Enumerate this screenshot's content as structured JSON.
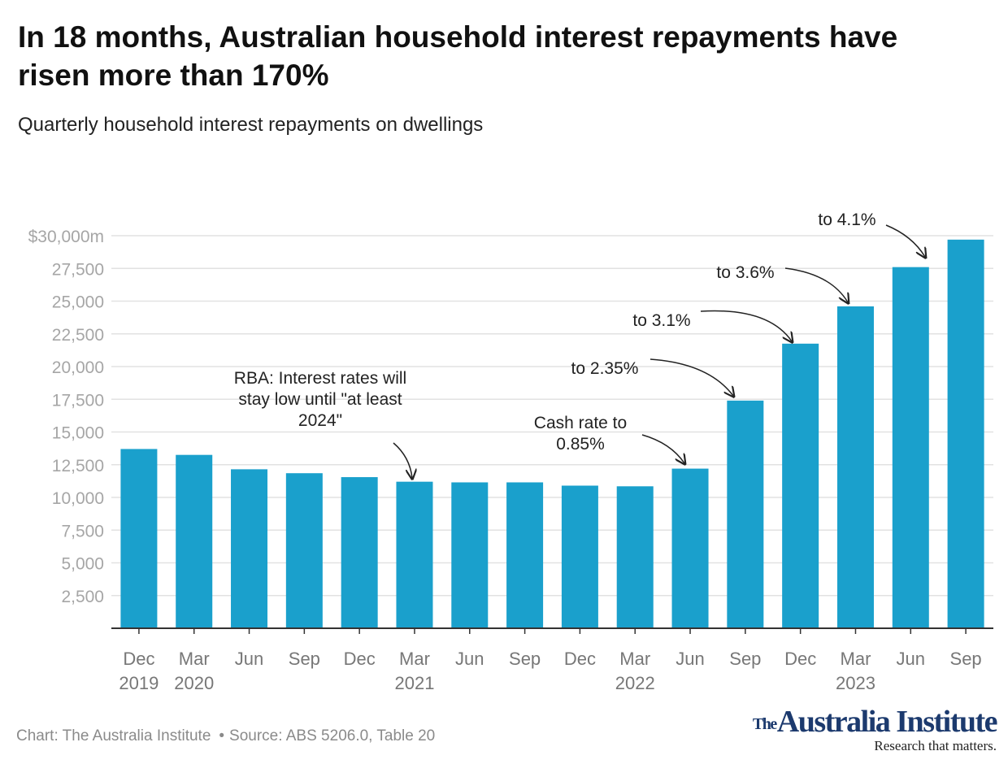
{
  "title": "In 18 months, Australian household interest repayments have risen more than 170%",
  "subtitle": "Quarterly household interest repayments on dwellings",
  "footer": {
    "chart_credit": "Chart: The Australia Institute",
    "source": "Source: ABS 5206.0, Table 20"
  },
  "logo": {
    "the": "The",
    "name": "Australia Institute",
    "tagline": "Research that matters."
  },
  "colors": {
    "bar": "#1aa0cc",
    "grid": "#e2e2e2",
    "axis": "#333333",
    "tick_text": "#a6a6a6",
    "x_text": "#777777",
    "annotation_text": "#222222",
    "logo": "#1c3a6e"
  },
  "chart_data": {
    "type": "bar",
    "categories": [
      "Dec 2019",
      "Mar 2020",
      "Jun",
      "Sep",
      "Dec",
      "Mar 2021",
      "Jun",
      "Sep",
      "Dec",
      "Mar 2022",
      "Jun",
      "Sep",
      "Dec",
      "Mar 2023",
      "Jun",
      "Sep"
    ],
    "x_labels": [
      [
        "Dec",
        "2019"
      ],
      [
        "Mar",
        "2020"
      ],
      [
        "Jun",
        ""
      ],
      [
        "Sep",
        ""
      ],
      [
        "Dec",
        ""
      ],
      [
        "Mar",
        "2021"
      ],
      [
        "Jun",
        ""
      ],
      [
        "Sep",
        ""
      ],
      [
        "Dec",
        ""
      ],
      [
        "Mar",
        "2022"
      ],
      [
        "Jun",
        ""
      ],
      [
        "Sep",
        ""
      ],
      [
        "Dec",
        ""
      ],
      [
        "Mar",
        "2023"
      ],
      [
        "Jun",
        ""
      ],
      [
        "Sep",
        ""
      ]
    ],
    "values": [
      13700,
      13250,
      12150,
      11850,
      11550,
      11200,
      11150,
      11150,
      10900,
      10850,
      12200,
      17400,
      21750,
      24600,
      27600,
      29700
    ],
    "ylim": [
      0,
      30000
    ],
    "yticks": [
      2500,
      5000,
      7500,
      10000,
      12500,
      15000,
      17500,
      20000,
      22500,
      25000,
      27500,
      30000
    ],
    "ytick_labels": [
      "2,500",
      "5,000",
      "7,500",
      "10,000",
      "12,500",
      "15,000",
      "17,500",
      "20,000",
      "22,500",
      "25,000",
      "27,500",
      "$30,000m"
    ],
    "grid": true,
    "title": "In 18 months, Australian household interest repayments have risen more than 170%",
    "subtitle": "Quarterly household interest repayments on dwellings",
    "annotations": [
      {
        "lines": [
          "RBA: Interest rates will",
          "stay low until \"at least",
          "2024\""
        ],
        "target_index": 5
      },
      {
        "lines": [
          "Cash rate to",
          "0.85%"
        ],
        "target_index": 10
      },
      {
        "lines": [
          "to 2.35%"
        ],
        "target_index": 11
      },
      {
        "lines": [
          "to 3.1%"
        ],
        "target_index": 12
      },
      {
        "lines": [
          "to 3.6%"
        ],
        "target_index": 13
      },
      {
        "lines": [
          "to 4.1%"
        ],
        "target_index": 14
      }
    ]
  }
}
